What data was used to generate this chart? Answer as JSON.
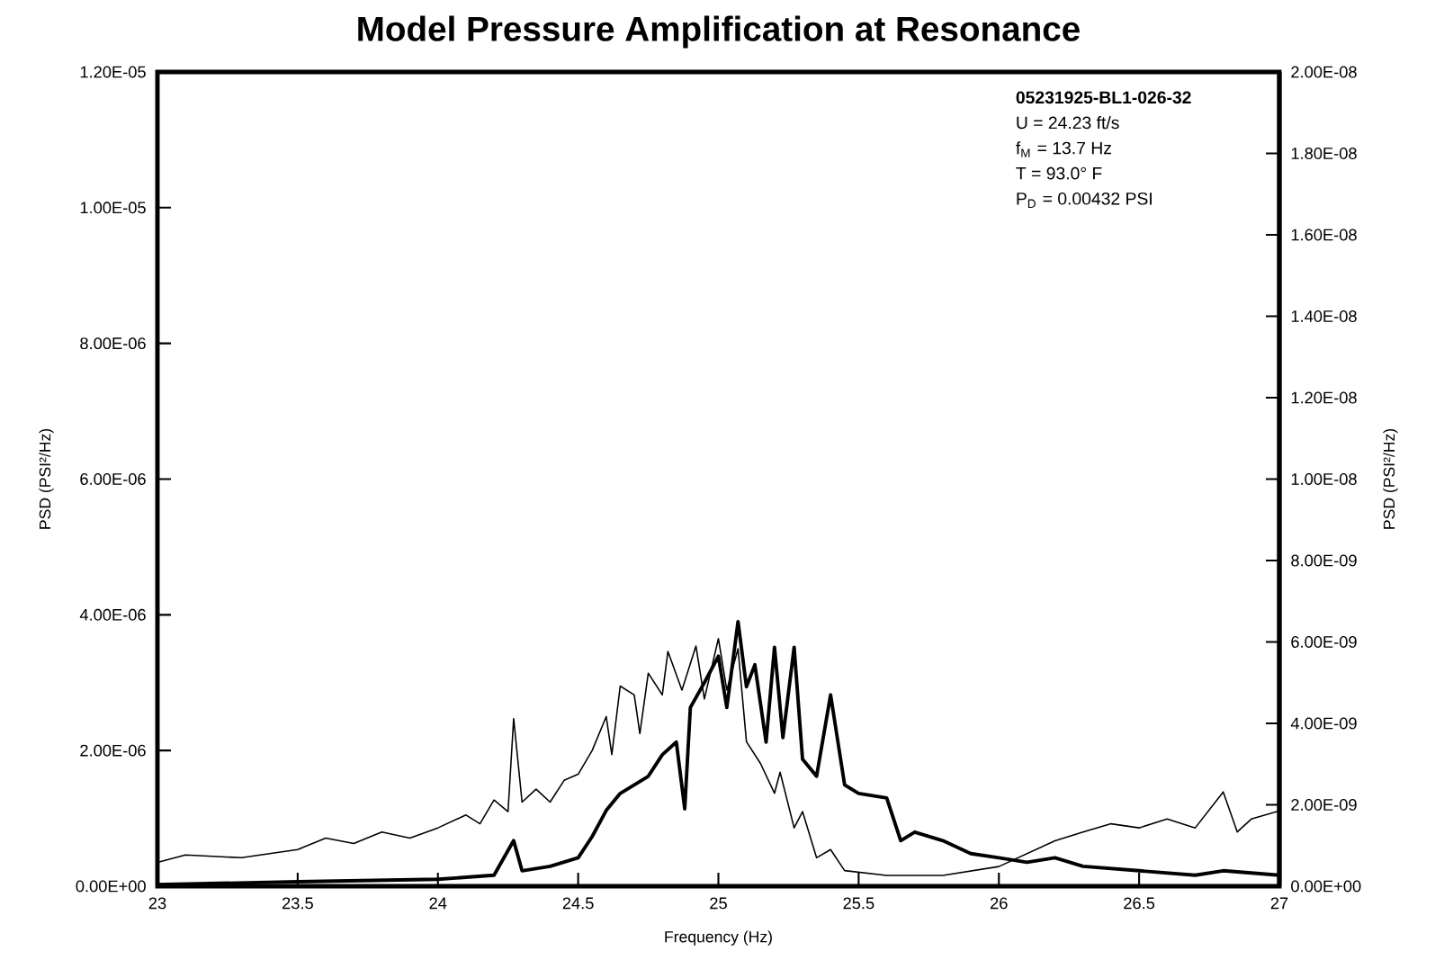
{
  "chart_data": {
    "type": "line",
    "title": "Model Pressure Amplification at Resonance",
    "xlabel": "Frequency (Hz)",
    "ylabel": "PSD (PSI²/Hz)",
    "y2label": "PSD (PSI²/Hz)",
    "annotations": [
      "**05231925-BL1-026-32**",
      "U = 24.23 ft/s",
      "f$_{M}$ = 13.7 Hz",
      "T = 93.0° F",
      "P$_{D}$ = 0.00432 PSI"
    ],
    "xlim": [
      23,
      27
    ],
    "xticks": [
      23,
      23.5,
      24,
      24.5,
      25,
      25.5,
      26,
      26.5,
      27
    ],
    "ylim": [
      0,
      1.2e-05
    ],
    "yticks": [
      {
        "value": 0,
        "label": "0.00E+00"
      },
      {
        "value": 2e-06,
        "label": "2.00E-06"
      },
      {
        "value": 4e-06,
        "label": "4.00E-06"
      },
      {
        "value": 6e-06,
        "label": "6.00E-06"
      },
      {
        "value": 8e-06,
        "label": "8.00E-06"
      },
      {
        "value": 1e-05,
        "label": "1.00E-05"
      },
      {
        "value": 1.2e-05,
        "label": "1.20E-05"
      }
    ],
    "y2lim": [
      0,
      2e-08
    ],
    "y2ticks": [
      {
        "value": 0,
        "label": "0.00E+00"
      },
      {
        "value": 2e-09,
        "label": "2.00E-09"
      },
      {
        "value": 4e-09,
        "label": "4.00E-09"
      },
      {
        "value": 6e-09,
        "label": "6.00E-09"
      },
      {
        "value": 8e-09,
        "label": "8.00E-09"
      },
      {
        "value": 1e-08,
        "label": "1.00E-08"
      },
      {
        "value": 1.2e-08,
        "label": "1.20E-08"
      },
      {
        "value": 1.4e-08,
        "label": "1.40E-08"
      },
      {
        "value": 1.6e-08,
        "label": "1.60E-08"
      },
      {
        "value": 1.8e-08,
        "label": "1.80E-08"
      },
      {
        "value": 2e-08,
        "label": "2.00E-08"
      }
    ],
    "grid": false,
    "marker": "none",
    "line_style": "solid",
    "series": [
      {
        "color": "#000000",
        "x": [
          23.0,
          23.1,
          23.3,
          23.5,
          23.6,
          23.7,
          23.8,
          23.9,
          24.0,
          24.1,
          24.15,
          24.2,
          24.25,
          24.27,
          24.3,
          24.35,
          24.4,
          24.45,
          24.5,
          24.55,
          24.6,
          24.62,
          24.65,
          24.7,
          24.72,
          24.75,
          24.8,
          24.82,
          24.87,
          24.92,
          24.95,
          25.0,
          25.03,
          25.07,
          25.1,
          25.15,
          25.2,
          25.22,
          25.27,
          25.3,
          25.35,
          25.4,
          25.45,
          25.6,
          25.8,
          26.0,
          26.1,
          26.2,
          26.3,
          26.4,
          26.5,
          26.6,
          26.7,
          26.8,
          26.85,
          26.9,
          27.0
        ],
        "values": [
          3.5e-07,
          4.6e-07,
          4.2e-07,
          5.4e-07,
          7.1e-07,
          6.3e-07,
          8e-07,
          7.1e-07,
          8.6e-07,
          1.05e-06,
          9.2e-07,
          1.27e-06,
          1.1e-06,
          2.47e-06,
          1.24e-06,
          1.43e-06,
          1.24e-06,
          1.56e-06,
          1.65e-06,
          2e-06,
          2.5e-06,
          1.94e-06,
          2.95e-06,
          2.82e-06,
          2.25e-06,
          3.14e-06,
          2.82e-06,
          3.46e-06,
          2.89e-06,
          3.54e-06,
          2.76e-06,
          3.65e-06,
          2.89e-06,
          3.5e-06,
          2.13e-06,
          1.81e-06,
          1.37e-06,
          1.68e-06,
          8.6e-07,
          1.1e-06,
          4.2e-07,
          5.4e-07,
          2.3e-07,
          1.6e-07,
          1.6e-07,
          2.9e-07,
          4.8e-07,
          6.7e-07,
          8e-07,
          9.2e-07,
          8.6e-07,
          9.9e-07,
          8.6e-07,
          1.39e-06,
          8e-07,
          9.9e-07,
          1.11e-06
        ]
      },
      {
        "color": "#000000",
        "axis": "y2",
        "x": [
          23.0,
          23.5,
          24.0,
          24.2,
          24.27,
          24.3,
          24.4,
          24.5,
          24.55,
          24.6,
          24.65,
          24.7,
          24.75,
          24.8,
          24.85,
          24.88,
          24.9,
          24.95,
          25.0,
          25.03,
          25.07,
          25.1,
          25.13,
          25.17,
          25.2,
          25.23,
          25.27,
          25.3,
          25.35,
          25.4,
          25.45,
          25.5,
          25.6,
          25.65,
          25.7,
          25.8,
          25.9,
          26.0,
          26.1,
          26.2,
          26.3,
          26.5,
          26.7,
          26.8,
          27.0
        ],
        "values": [
          4e-11,
          1.1e-10,
          1.7e-10,
          2.7e-10,
          1.12e-09,
          3.8e-10,
          4.9e-10,
          7e-10,
          1.22e-09,
          1.86e-09,
          2.28e-09,
          2.49e-09,
          2.7e-09,
          3.23e-09,
          3.54e-09,
          1.9e-09,
          4.39e-09,
          5e-09,
          5.65e-09,
          4.39e-09,
          6.5e-09,
          4.9e-09,
          5.44e-09,
          3.54e-09,
          5.87e-09,
          3.65e-09,
          5.87e-09,
          3.12e-09,
          2.7e-09,
          4.7e-09,
          2.49e-09,
          2.28e-09,
          2.17e-09,
          1.12e-09,
          1.33e-09,
          1.12e-09,
          8e-10,
          7e-10,
          5.9e-10,
          7e-10,
          4.9e-10,
          3.8e-10,
          2.7e-10,
          3.8e-10,
          2.7e-10
        ]
      }
    ]
  }
}
